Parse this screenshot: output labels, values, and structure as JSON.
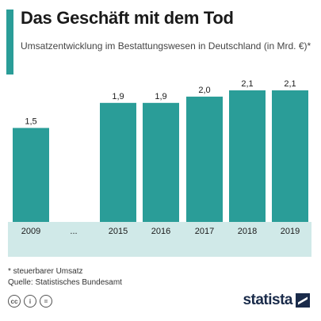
{
  "header": {
    "title": "Das Geschäft mit dem Tod",
    "subtitle": "Umsatzentwicklung im Bestattungswesen in Deutschland (in Mrd. €)*"
  },
  "colors": {
    "accent": "#2a9d98",
    "bar": "#2a9d98",
    "axis_band": "#d0e9e8",
    "label": "#1a1a1a"
  },
  "chart_data": {
    "type": "bar",
    "title": "Das Geschäft mit dem Tod",
    "subtitle": "Umsatzentwicklung im Bestattungswesen in Deutschland (in Mrd. €)*",
    "categories": [
      "2009",
      "...",
      "2015",
      "2016",
      "2017",
      "2018",
      "2019"
    ],
    "values": [
      1.5,
      null,
      1.9,
      1.9,
      2.0,
      2.1,
      2.1
    ],
    "value_labels": [
      "1,5",
      "",
      "1,9",
      "1,9",
      "2,0",
      "2,1",
      "2,1"
    ],
    "ylim": [
      0,
      2.1
    ],
    "grid": false,
    "xlabel": "",
    "ylabel": ""
  },
  "footer": {
    "footnote": "* steuerbarer Umsatz",
    "source": "Quelle: Statistisches Bundesamt",
    "license_icons": [
      "cc-icon",
      "attribution-icon",
      "no-derivatives-icon"
    ],
    "license_glyphs": [
      "cc",
      "i",
      "="
    ],
    "brand": "statista"
  }
}
